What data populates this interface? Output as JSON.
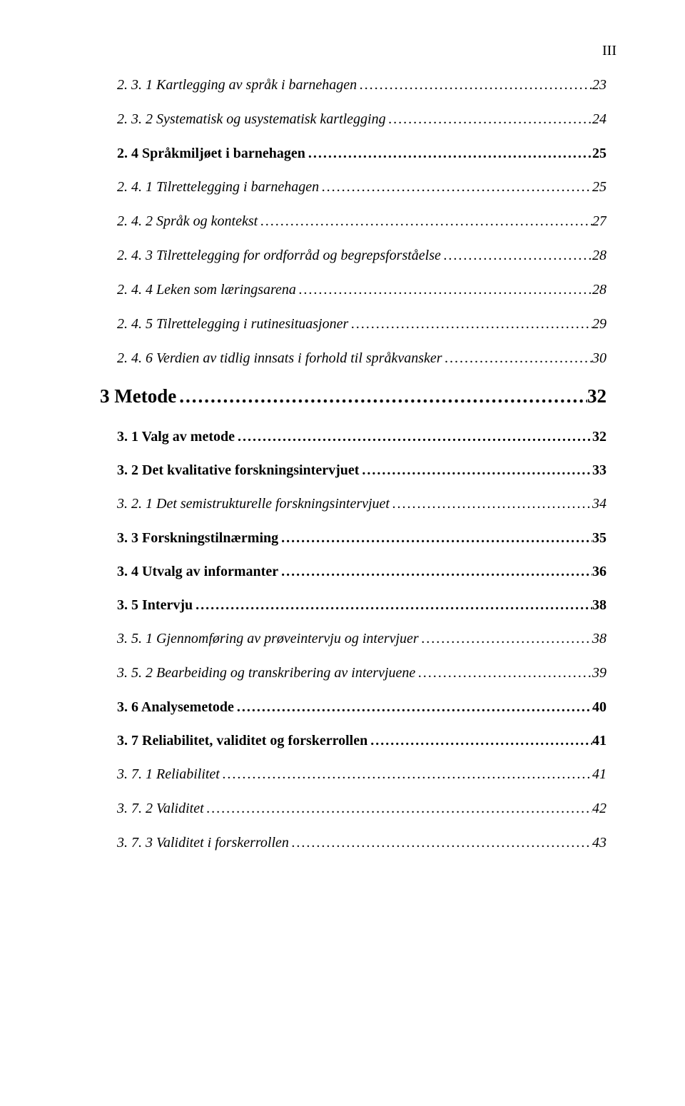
{
  "page_number_label": "III",
  "toc": [
    {
      "level": 3,
      "label": "2. 3. 1 Kartlegging av språk i barnehagen",
      "page": "23"
    },
    {
      "level": 3,
      "label": "2. 3. 2 Systematisk og usystematisk kartlegging",
      "page": "24"
    },
    {
      "level": 2,
      "label": "2. 4 Språkmiljøet i barnehagen",
      "page": "25"
    },
    {
      "level": 3,
      "label": "2. 4. 1 Tilrettelegging i barnehagen",
      "page": "25"
    },
    {
      "level": 3,
      "label": "2. 4. 2  Språk og kontekst",
      "page": "27"
    },
    {
      "level": 3,
      "label": "2. 4. 3 Tilrettelegging for ordforråd og begrepsforståelse",
      "page": "28"
    },
    {
      "level": 3,
      "label": "2. 4. 4 Leken som læringsarena",
      "page": "28"
    },
    {
      "level": 3,
      "label": "2. 4. 5 Tilrettelegging i rutinesituasjoner",
      "page": "29"
    },
    {
      "level": 3,
      "label": "2. 4. 6 Verdien av tidlig innsats i forhold til språkvansker",
      "page": "30"
    },
    {
      "level": 1,
      "label": "3 Metode",
      "page": "32"
    },
    {
      "level": 2,
      "label": "3. 1 Valg av metode",
      "page": "32"
    },
    {
      "level": 2,
      "label": "3. 2 Det kvalitative forskningsintervjuet",
      "page": "33"
    },
    {
      "level": 3,
      "label": "3. 2. 1 Det semistrukturelle forskningsintervjuet",
      "page": "34"
    },
    {
      "level": 2,
      "label": "3. 3 Forskningstilnærming",
      "page": "35"
    },
    {
      "level": 2,
      "label": "3. 4 Utvalg av informanter",
      "page": "36"
    },
    {
      "level": 2,
      "label": "3. 5 Intervju",
      "page": "38"
    },
    {
      "level": 3,
      "label": "3. 5. 1 Gjennomføring av prøveintervju og intervjuer",
      "page": "38"
    },
    {
      "level": 3,
      "label": "3. 5. 2 Bearbeiding og transkribering av intervjuene",
      "page": "39"
    },
    {
      "level": 2,
      "label": "3. 6 Analysemetode",
      "page": "40"
    },
    {
      "level": 2,
      "label": "3. 7 Reliabilitet, validitet og forskerrollen",
      "page": "41"
    },
    {
      "level": 3,
      "label": "3. 7. 1 Reliabilitet",
      "page": "41"
    },
    {
      "level": 3,
      "label": "3. 7. 2 Validitet",
      "page": "42"
    },
    {
      "level": 3,
      "label": "3. 7. 3 Validitet i forskerrollen",
      "page": "43"
    }
  ]
}
